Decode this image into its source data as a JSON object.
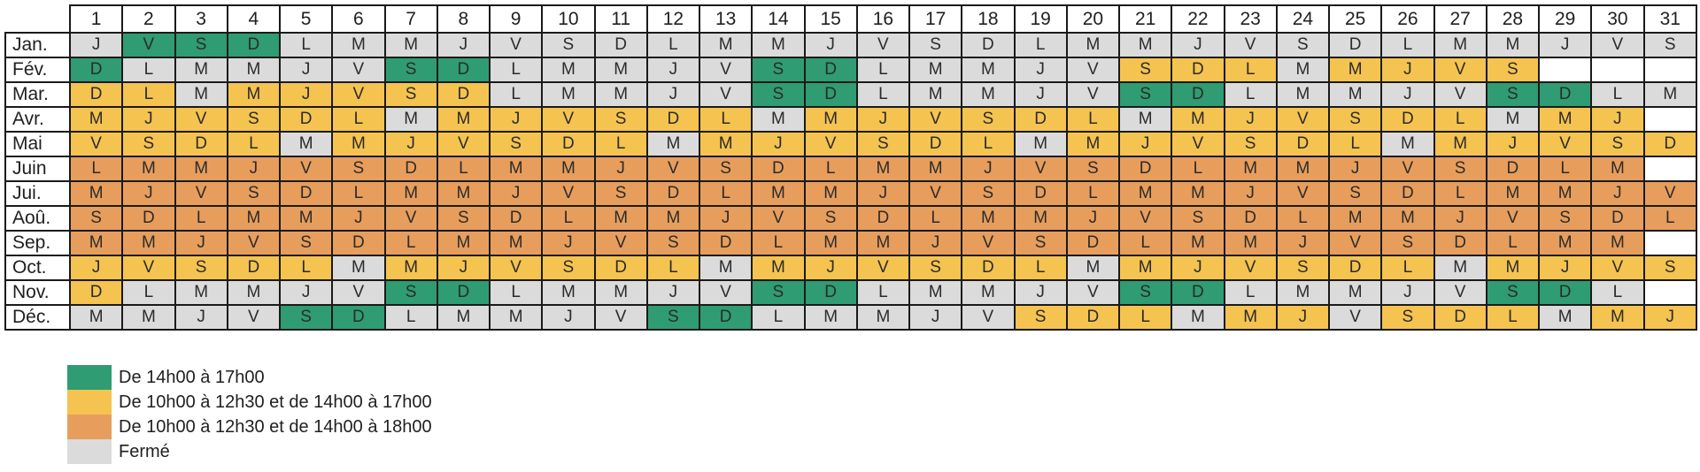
{
  "chart_data": {
    "type": "heatmap",
    "description": "Annual opening-hours calendar: rows are months, columns are days 1-31, cell letters are French weekday initials, cell colors encode opening hours",
    "columns": [
      "1",
      "2",
      "3",
      "4",
      "5",
      "6",
      "7",
      "8",
      "9",
      "10",
      "11",
      "12",
      "13",
      "14",
      "15",
      "16",
      "17",
      "18",
      "19",
      "20",
      "21",
      "22",
      "23",
      "24",
      "25",
      "26",
      "27",
      "28",
      "29",
      "30",
      "31"
    ],
    "color_codes": {
      "g": "closed",
      "G": "green",
      "Y": "yellow",
      "O": "orange",
      "w": "none"
    },
    "colors": {
      "green": "#2f9c73",
      "yellow": "#f5c350",
      "orange": "#e79e5c",
      "closed": "#dbdbdb",
      "none": "#ffffff",
      "grid": "#1a1a1a"
    },
    "rows": [
      {
        "label": "Jan.",
        "letters": "JVSDLMMJVSDLMMJVSDLMMJVSDLMMJVS",
        "cells": "gGGGggggggggggggggggggggggggggg"
      },
      {
        "label": "Fév.",
        "letters": "DLMMJVSDLMMJVSDLMMJVSDLMMJVS...",
        "cells": "GgggggGGgggggGGgggggYYYgYYYYwww"
      },
      {
        "label": "Mar.",
        "letters": "DLMMJVSDLMMJVSDLMMJVSDLMMJVSDLM",
        "cells": "YYgYYYYYgggggGGgggggGGgggggGGgg"
      },
      {
        "label": "Avr.",
        "letters": "MJVSDLMMJVSDLMMJVSDLMMJVSDLMMJ.",
        "cells": "YYYYYYgYYYYYYgYYYYYYgYYYYYYgYYw"
      },
      {
        "label": "Mai",
        "letters": "VSDLMMJVSDLMMJVSDLMMJVSDLMMJVSD",
        "cells": "YYYYgYYYYYYgYYYYYYgYYYYYYgYYYYY"
      },
      {
        "label": "Juin",
        "letters": "LMMJVSDLMMJVSDLMMJVSDLMMJVSDLM.",
        "cells": "OOOOOOOOOOOOOOOOOOOOOOOOOOOOOOw"
      },
      {
        "label": "Jui.",
        "letters": "MJVSDLMMJVSDLMMJVSDLMMJVSDLMMJV",
        "cells": "OOOOOOOOOOOOOOOOOOOOOOOOOOOOOOO"
      },
      {
        "label": "Aoû.",
        "letters": "SDLMMJVSDLMMJVSDLMMJVSDLMMJVSDL",
        "cells": "OOOOOOOOOOOOOOOOOOOOOOOOOOOOOOO"
      },
      {
        "label": "Sep.",
        "letters": "MMJVSDLMMJVSDLMMJVSDLMMJVSDLMM.",
        "cells": "OOOOOOOOOOOOOOOOOOOOOOOOOOOOOOw"
      },
      {
        "label": "Oct.",
        "letters": "JVSDLMMJVSDLMMJVSDLMMJVSDLMMJVS",
        "cells": "YYYYYgYYYYYYgYYYYYYgYYYYYYgYYYY"
      },
      {
        "label": "Nov.",
        "letters": "DLMMJVSDLMMJVSDLMMJVSDLMMJVSDL.",
        "cells": "YgggggGGgggggGGgggggGGgggggGGgw"
      },
      {
        "label": "Déc.",
        "letters": "MMJVSDLMMJVSDLMMJVSDLMMJVSDLMMJ",
        "cells": "ggggGGgggggGGgggggYYYgYYgYYYgYY"
      }
    ],
    "legend": [
      {
        "key": "green",
        "color": "#2f9c73",
        "label": "De 14h00 à 17h00"
      },
      {
        "key": "yellow",
        "color": "#f5c350",
        "label": "De 10h00 à 12h30 et de 14h00 à 17h00"
      },
      {
        "key": "orange",
        "color": "#e79e5c",
        "label": "De 10h00 à 12h30 et de 14h00 à 18h00"
      },
      {
        "key": "closed",
        "color": "#dbdbdb",
        "label": "Fermé"
      }
    ],
    "legend_position": "bottom-left",
    "grid": true
  }
}
